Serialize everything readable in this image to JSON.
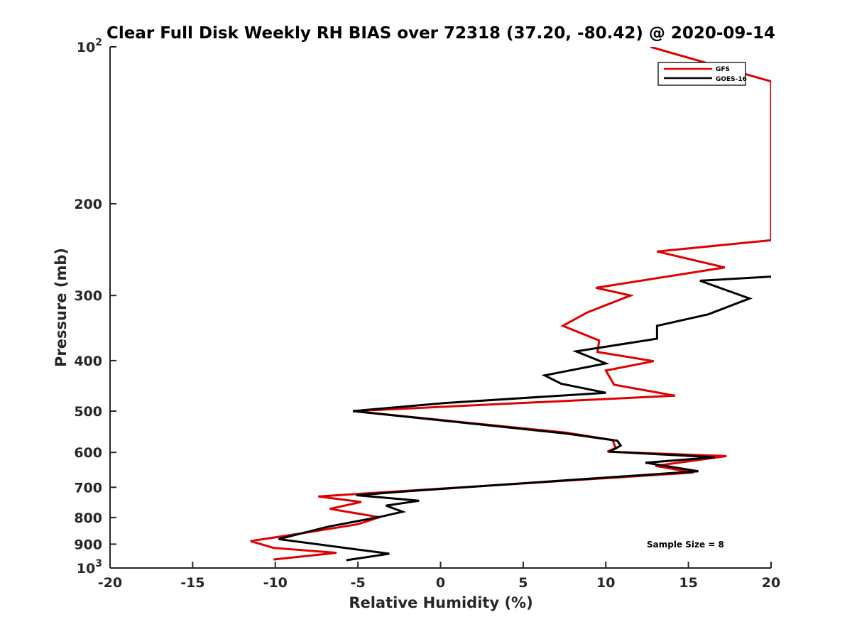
{
  "chart_data": {
    "type": "line",
    "title": "Clear Full Disk Weekly RH BIAS over 72318 (37.20, -80.42) @ 2020-09-14",
    "xlabel": "Relative Humidity (%)",
    "ylabel": "Pressure (mb)",
    "xlim": [
      -20,
      20
    ],
    "ylim": [
      100,
      1000
    ],
    "y_scale": "log",
    "y_reversed": true,
    "grid": false,
    "legend_position": "top-right",
    "x_ticks": [
      "-20",
      "-15",
      "-10",
      "-5",
      "0",
      "5",
      "10",
      "15",
      "20"
    ],
    "y_ticks": [
      {
        "value": 100,
        "label": "10",
        "sup": "2"
      },
      {
        "value": 200,
        "label": "200",
        "sup": ""
      },
      {
        "value": 300,
        "label": "300",
        "sup": ""
      },
      {
        "value": 400,
        "label": "400",
        "sup": ""
      },
      {
        "value": 500,
        "label": "500",
        "sup": ""
      },
      {
        "value": 600,
        "label": "600",
        "sup": ""
      },
      {
        "value": 700,
        "label": "700",
        "sup": ""
      },
      {
        "value": 800,
        "label": "800",
        "sup": ""
      },
      {
        "value": 900,
        "label": "900",
        "sup": ""
      },
      {
        "value": 1000,
        "label": "10",
        "sup": "3"
      }
    ],
    "series": [
      {
        "name": "GFS",
        "color": "#e00000",
        "points": [
          [
            12.7,
            100
          ],
          [
            20.0,
            116.5
          ],
          [
            20.0,
            235
          ],
          [
            13.1,
            247
          ],
          [
            17.2,
            265
          ],
          [
            9.4,
            290
          ],
          [
            11.5,
            300
          ],
          [
            8.9,
            323
          ],
          [
            7.4,
            343
          ],
          [
            9.6,
            366
          ],
          [
            9.5,
            385
          ],
          [
            12.9,
            401
          ],
          [
            10.0,
            418
          ],
          [
            10.5,
            445
          ],
          [
            14.2,
            467
          ],
          [
            -5.3,
            500
          ],
          [
            7.6,
            550
          ],
          [
            10.4,
            568
          ],
          [
            10.6,
            588
          ],
          [
            10.1,
            598
          ],
          [
            17.3,
            610
          ],
          [
            13.0,
            637
          ],
          [
            15.3,
            656
          ],
          [
            -7.4,
            729
          ],
          [
            -4.8,
            747
          ],
          [
            -6.7,
            770
          ],
          [
            -3.7,
            799
          ],
          [
            -5.0,
            824
          ],
          [
            -8.0,
            854
          ],
          [
            -11.5,
            888
          ],
          [
            -10.1,
            915
          ],
          [
            -6.3,
            935
          ],
          [
            -10.1,
            963
          ]
        ]
      },
      {
        "name": "GOES-16",
        "color": "#000000",
        "points": [
          [
            20.0,
            276
          ],
          [
            15.7,
            281
          ],
          [
            18.7,
            304
          ],
          [
            16.2,
            326
          ],
          [
            13.1,
            343
          ],
          [
            13.1,
            363
          ],
          [
            8.2,
            384
          ],
          [
            10.0,
            405
          ],
          [
            6.3,
            427
          ],
          [
            7.3,
            443
          ],
          [
            10.0,
            461
          ],
          [
            0.4,
            482
          ],
          [
            -5.3,
            500
          ],
          [
            7.6,
            552
          ],
          [
            10.7,
            570
          ],
          [
            10.9,
            582
          ],
          [
            10.5,
            592
          ],
          [
            10.2,
            598
          ],
          [
            16.6,
            613
          ],
          [
            12.4,
            628
          ],
          [
            15.6,
            652
          ],
          [
            -1.9,
            712
          ],
          [
            -5.1,
            725
          ],
          [
            -1.3,
            743
          ],
          [
            -3.3,
            759
          ],
          [
            -2.3,
            780
          ],
          [
            -3.6,
            797
          ],
          [
            -6.8,
            833
          ],
          [
            -9.8,
            880
          ],
          [
            -3.1,
            939
          ],
          [
            -5.7,
            966
          ]
        ]
      }
    ]
  },
  "annotation": "Sample Size = 8"
}
